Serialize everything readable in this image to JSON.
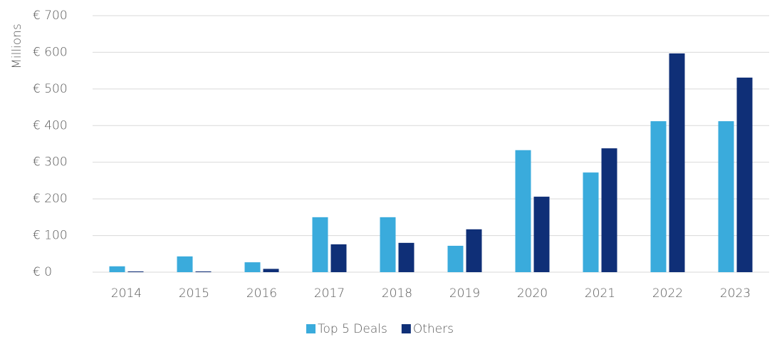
{
  "chart_data": {
    "type": "bar",
    "y_label": "Millions",
    "categories": [
      "2014",
      "2015",
      "2016",
      "2017",
      "2018",
      "2019",
      "2020",
      "2021",
      "2022",
      "2023"
    ],
    "series": [
      {
        "name": "Top 5 Deals",
        "color": "#3aabdc",
        "values": [
          16,
          43,
          27,
          150,
          150,
          72,
          333,
          272,
          412,
          412
        ]
      },
      {
        "name": "Others",
        "color": "#0f2f77",
        "values": [
          2,
          2,
          9,
          76,
          80,
          117,
          206,
          338,
          597,
          531
        ]
      }
    ],
    "ylim": [
      0,
      700
    ],
    "yticks": [
      {
        "value": 0,
        "label": "€ 0"
      },
      {
        "value": 100,
        "label": "€ 100"
      },
      {
        "value": 200,
        "label": "€ 200"
      },
      {
        "value": 300,
        "label": "€ 300"
      },
      {
        "value": 400,
        "label": "€ 400"
      },
      {
        "value": 500,
        "label": "€ 500"
      },
      {
        "value": 600,
        "label": "€ 600"
      },
      {
        "value": 700,
        "label": "€ 700"
      }
    ],
    "grid": true,
    "legend": "bottom"
  }
}
